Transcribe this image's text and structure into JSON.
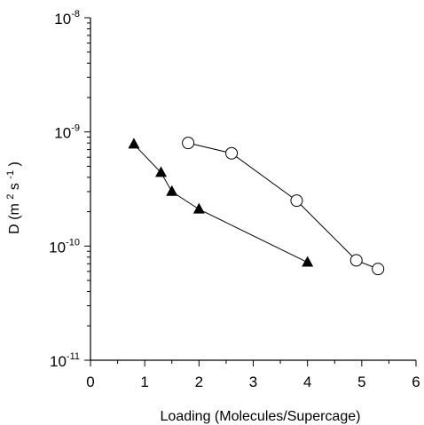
{
  "chart_data": {
    "type": "scatter",
    "title": "",
    "xlabel": "Loading (Molecules/Supercage)",
    "ylabel": {
      "base": "D (m",
      "sup1": "2",
      "mid": "s",
      "sup2": "-1",
      "end": ")"
    },
    "x_scale": "linear",
    "y_scale": "log",
    "xlim": [
      0,
      6
    ],
    "ylim": [
      1e-11,
      1e-08
    ],
    "x_ticks": [
      0,
      1,
      2,
      3,
      4,
      5,
      6
    ],
    "x_tick_labels": [
      "0",
      "1",
      "2",
      "3",
      "4",
      "5",
      "6"
    ],
    "y_ticks": [
      1e-11,
      1e-10,
      1e-09,
      1e-08
    ],
    "y_tick_labels": [
      {
        "base": "10",
        "exp": "-11"
      },
      {
        "base": "10",
        "exp": "-10"
      },
      {
        "base": "10",
        "exp": "-9"
      },
      {
        "base": "10",
        "exp": "-8"
      }
    ],
    "grid": false,
    "legend": "none",
    "series": [
      {
        "marker": "filled-triangle",
        "color": "#000000",
        "x": [
          0.8,
          1.3,
          1.5,
          2.0,
          4.0
        ],
        "y": [
          7.8e-10,
          4.4e-10,
          3e-10,
          2.1e-10,
          7.2e-11
        ]
      },
      {
        "marker": "open-circle",
        "color": "#000000",
        "x": [
          1.8,
          2.6,
          3.8,
          4.9,
          5.3
        ],
        "y": [
          8e-10,
          6.5e-10,
          2.5e-10,
          7.5e-11,
          6.3e-11
        ]
      }
    ]
  }
}
